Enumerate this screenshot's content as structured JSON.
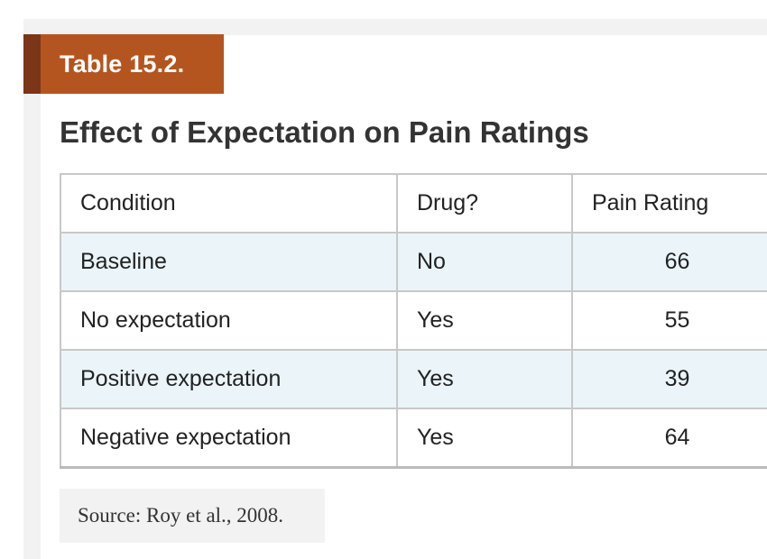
{
  "table_label": "Table 15.2.",
  "caption": "Effect of Expectation on Pain Ratings",
  "table": {
    "headers": [
      "Condition",
      "Drug?",
      "Pain Rating"
    ],
    "rows": [
      [
        "Baseline",
        "No",
        "66"
      ],
      [
        "No expectation",
        "Yes",
        "55"
      ],
      [
        "Positive expectation",
        "Yes",
        "39"
      ],
      [
        "Negative expectation",
        "Yes",
        "64"
      ]
    ]
  },
  "source": "Source: Roy et al., 2008.",
  "colors": {
    "label_background": "#b4551f",
    "label_stripe": "#7a3617",
    "stripe_row": "#ebf5f9",
    "frame": "#f2f2f2"
  }
}
